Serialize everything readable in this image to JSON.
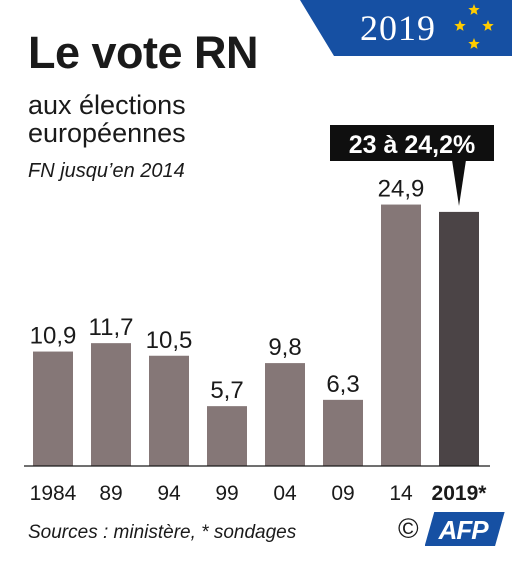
{
  "title": "Le vote RN",
  "subtitle_line1": "aux élections",
  "subtitle_line2": "européennes",
  "note": "FN jusqu’en 2014",
  "year_badge": "2019",
  "source": "Sources : ministère, * sondages",
  "credit": "©",
  "logo_text": "AFP",
  "colors": {
    "bar": "#857777",
    "bar_highlight": "#4b4446",
    "callout_bg": "#0f0f0f",
    "flag_blue": "#1650a3",
    "flag_star": "#ffcc00"
  },
  "chart_data": {
    "type": "bar",
    "categories": [
      "1984",
      "89",
      "94",
      "99",
      "04",
      "09",
      "14",
      "2019*"
    ],
    "values": [
      10.9,
      11.7,
      10.5,
      5.7,
      9.8,
      6.3,
      24.9,
      24.2
    ],
    "value_labels": [
      "10,9",
      "11,7",
      "10,5",
      "5,7",
      "9,8",
      "6,3",
      "24,9",
      ""
    ],
    "highlight": {
      "category": "2019*",
      "range": [
        23,
        24.2
      ],
      "label": "23 à 24,2%"
    },
    "ylim": [
      0,
      26
    ],
    "grid": false,
    "legend": "none",
    "title": "",
    "xlabel": "",
    "ylabel": ""
  }
}
